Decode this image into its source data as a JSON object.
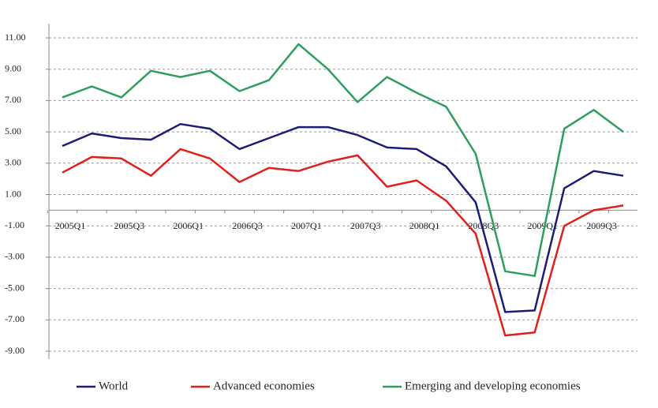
{
  "chart_data": {
    "type": "line",
    "categories": [
      "2005Q1",
      null,
      "2005Q3",
      null,
      "2006Q1",
      null,
      "2006Q3",
      null,
      "2007Q1",
      null,
      "2007Q3",
      null,
      "2008Q1",
      null,
      "2008Q3",
      null,
      "2009Q1",
      null,
      "2009Q3",
      null
    ],
    "series": [
      {
        "name": "World",
        "color": "#1c1c78",
        "values": [
          4.1,
          4.9,
          4.6,
          4.5,
          5.5,
          5.2,
          3.9,
          4.6,
          5.3,
          5.3,
          4.8,
          4.0,
          3.9,
          2.8,
          0.5,
          -6.5,
          -6.4,
          1.4,
          2.5,
          2.2
        ]
      },
      {
        "name": "Advanced economies",
        "color": "#e0201b",
        "values": [
          2.4,
          3.4,
          3.3,
          2.2,
          3.9,
          3.3,
          1.8,
          2.7,
          2.5,
          3.1,
          3.5,
          1.5,
          1.9,
          0.6,
          -1.5,
          -8.0,
          -7.8,
          -1.0,
          0.0,
          0.3
        ]
      },
      {
        "name": "Emerging and developing economies",
        "color": "#2e9e5e",
        "values": [
          7.2,
          7.9,
          7.2,
          8.9,
          8.5,
          8.9,
          7.6,
          8.3,
          10.6,
          9.0,
          6.9,
          8.5,
          7.5,
          6.6,
          3.6,
          -3.9,
          -4.2,
          5.2,
          6.4,
          5.0
        ]
      }
    ],
    "ylim": [
      -9,
      11
    ],
    "yticks": [
      {
        "value": -9,
        "label": "-9.00"
      },
      {
        "value": -7,
        "label": "-7.00"
      },
      {
        "value": -5,
        "label": "-5.00"
      },
      {
        "value": -3,
        "label": "-3.00"
      },
      {
        "value": -1,
        "label": "-1.00"
      },
      {
        "value": 1,
        "label": "1.00"
      },
      {
        "value": 3,
        "label": "3.00"
      },
      {
        "value": 5,
        "label": "5.00"
      },
      {
        "value": 7,
        "label": "7.00"
      },
      {
        "value": 9,
        "label": "9.00"
      },
      {
        "value": 11,
        "label": "11.00"
      }
    ],
    "grid": true,
    "legend": "bottom"
  }
}
